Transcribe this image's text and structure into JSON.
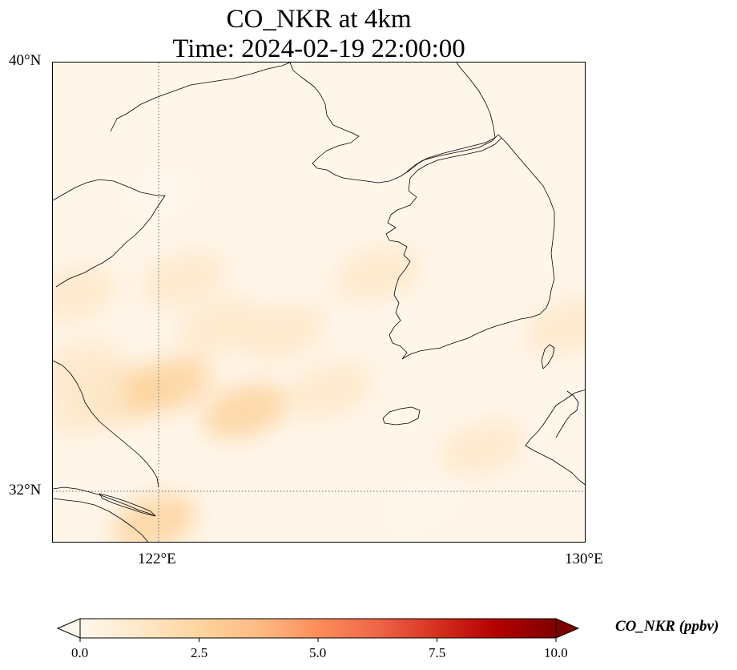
{
  "title": {
    "line1": "CO_NKR at 4km",
    "line2": "Time: 2024-02-19 22:00:00"
  },
  "map": {
    "lon_range": [
      118.75,
      130.0
    ],
    "lat_range": [
      30.9,
      40.0
    ],
    "lat_ticks": [
      {
        "value": 40,
        "label": "40°N"
      },
      {
        "value": 32,
        "label": "32°N"
      }
    ],
    "lon_ticks": [
      {
        "value": 122,
        "label": "122°E"
      },
      {
        "value": 130,
        "label": "130°E"
      }
    ],
    "gridlines": "dotted",
    "background_color": "#fff6ea",
    "coastline_color": "#000000"
  },
  "colorbar": {
    "label": "CO_NKR (ppbv)",
    "colormap": "OrRd",
    "min": 0.0,
    "max": 10.0,
    "extend": "both",
    "ticks": [
      {
        "value": 0.0,
        "label": "0.0"
      },
      {
        "value": 2.5,
        "label": "2.5"
      },
      {
        "value": 5.0,
        "label": "5.0"
      },
      {
        "value": 7.5,
        "label": "7.5"
      },
      {
        "value": 10.0,
        "label": "10.0"
      }
    ],
    "colors": [
      "#fff7ec",
      "#fee8c8",
      "#fdd49e",
      "#fdbb84",
      "#fc8d59",
      "#ef6548",
      "#d7301f",
      "#b30000",
      "#7f0000"
    ]
  },
  "concentration_patches": [
    {
      "lon": 120.3,
      "lat": 33.7,
      "value": 2.6
    },
    {
      "lon": 119.5,
      "lat": 33.5,
      "value": 1.8
    },
    {
      "lon": 121.2,
      "lat": 33.9,
      "value": 1.9
    },
    {
      "lon": 122.8,
      "lat": 33.4,
      "value": 2.0
    },
    {
      "lon": 122.3,
      "lat": 35.0,
      "value": 1.6
    },
    {
      "lon": 123.6,
      "lat": 34.9,
      "value": 1.2
    },
    {
      "lon": 119.2,
      "lat": 35.6,
      "value": 1.3
    },
    {
      "lon": 121.5,
      "lat": 35.9,
      "value": 0.9
    },
    {
      "lon": 124.6,
      "lat": 33.8,
      "value": 0.9
    },
    {
      "lon": 120.9,
      "lat": 31.3,
      "value": 2.0
    },
    {
      "lon": 125.6,
      "lat": 36.0,
      "value": 0.7
    },
    {
      "lon": 127.8,
      "lat": 32.7,
      "value": 0.8
    },
    {
      "lon": 129.6,
      "lat": 35.0,
      "value": 0.8
    },
    {
      "lon": 126.5,
      "lat": 31.6,
      "value": 0.6
    },
    {
      "lon": 121.0,
      "lat": 37.5,
      "value": 0.5
    },
    {
      "lon": 119.3,
      "lat": 34.2,
      "value": 1.5
    }
  ]
}
